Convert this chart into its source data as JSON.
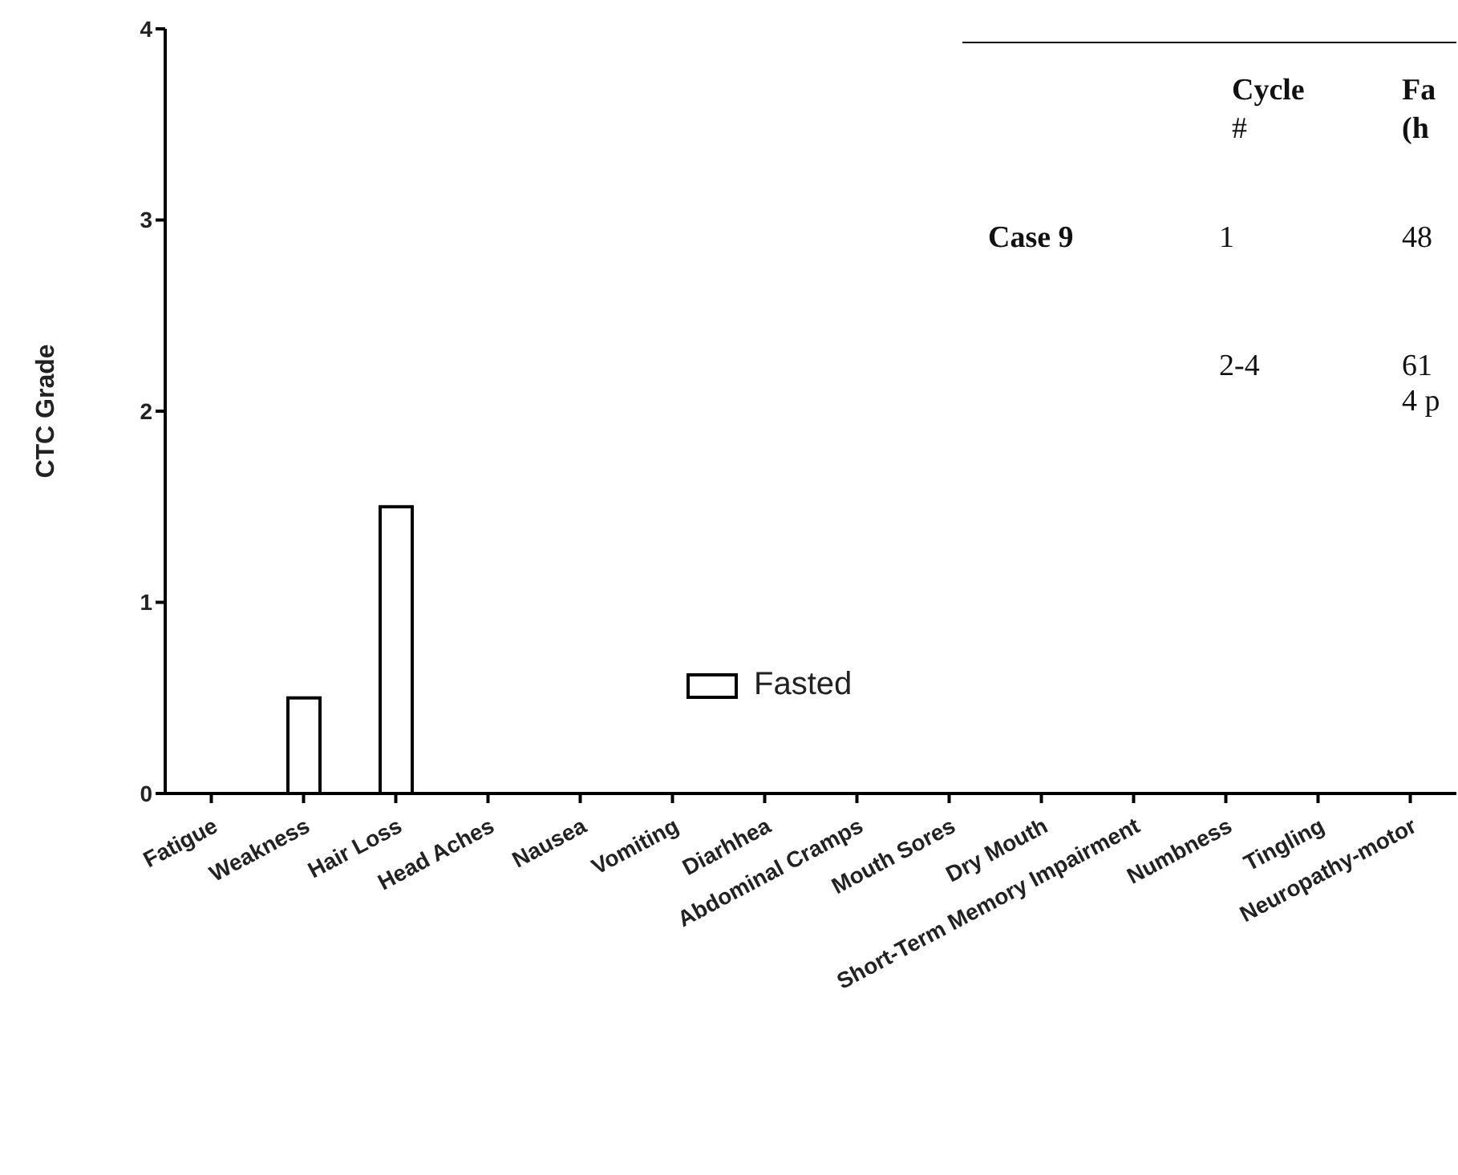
{
  "chart_data": {
    "type": "bar",
    "ylabel": "CTC Grade",
    "categories": [
      "Fatigue",
      "Weakness",
      "Hair Loss",
      "Head Aches",
      "Nausea",
      "Vomiting",
      "Diarhhea",
      "Abdominal Cramps",
      "Mouth Sores",
      "Dry Mouth",
      "Short-Term Memory Impairment",
      "Numbness",
      "Tingling",
      "Neuropathy-motor"
    ],
    "series": [
      {
        "name": "Fasted",
        "color": "#ffffff",
        "values": [
          0,
          0.5,
          1.5,
          0,
          0,
          0,
          0,
          0,
          0,
          0,
          0,
          0,
          0,
          0
        ]
      }
    ],
    "ylim": [
      0,
      4
    ],
    "yticks": [
      0,
      1,
      2,
      3,
      4
    ],
    "grid": false,
    "legend": "center",
    "annotations": [
      "Cycle",
      "#",
      "Fa",
      "(h",
      "Case 9",
      "1",
      "48",
      "2-4",
      "61",
      "4 p"
    ]
  }
}
